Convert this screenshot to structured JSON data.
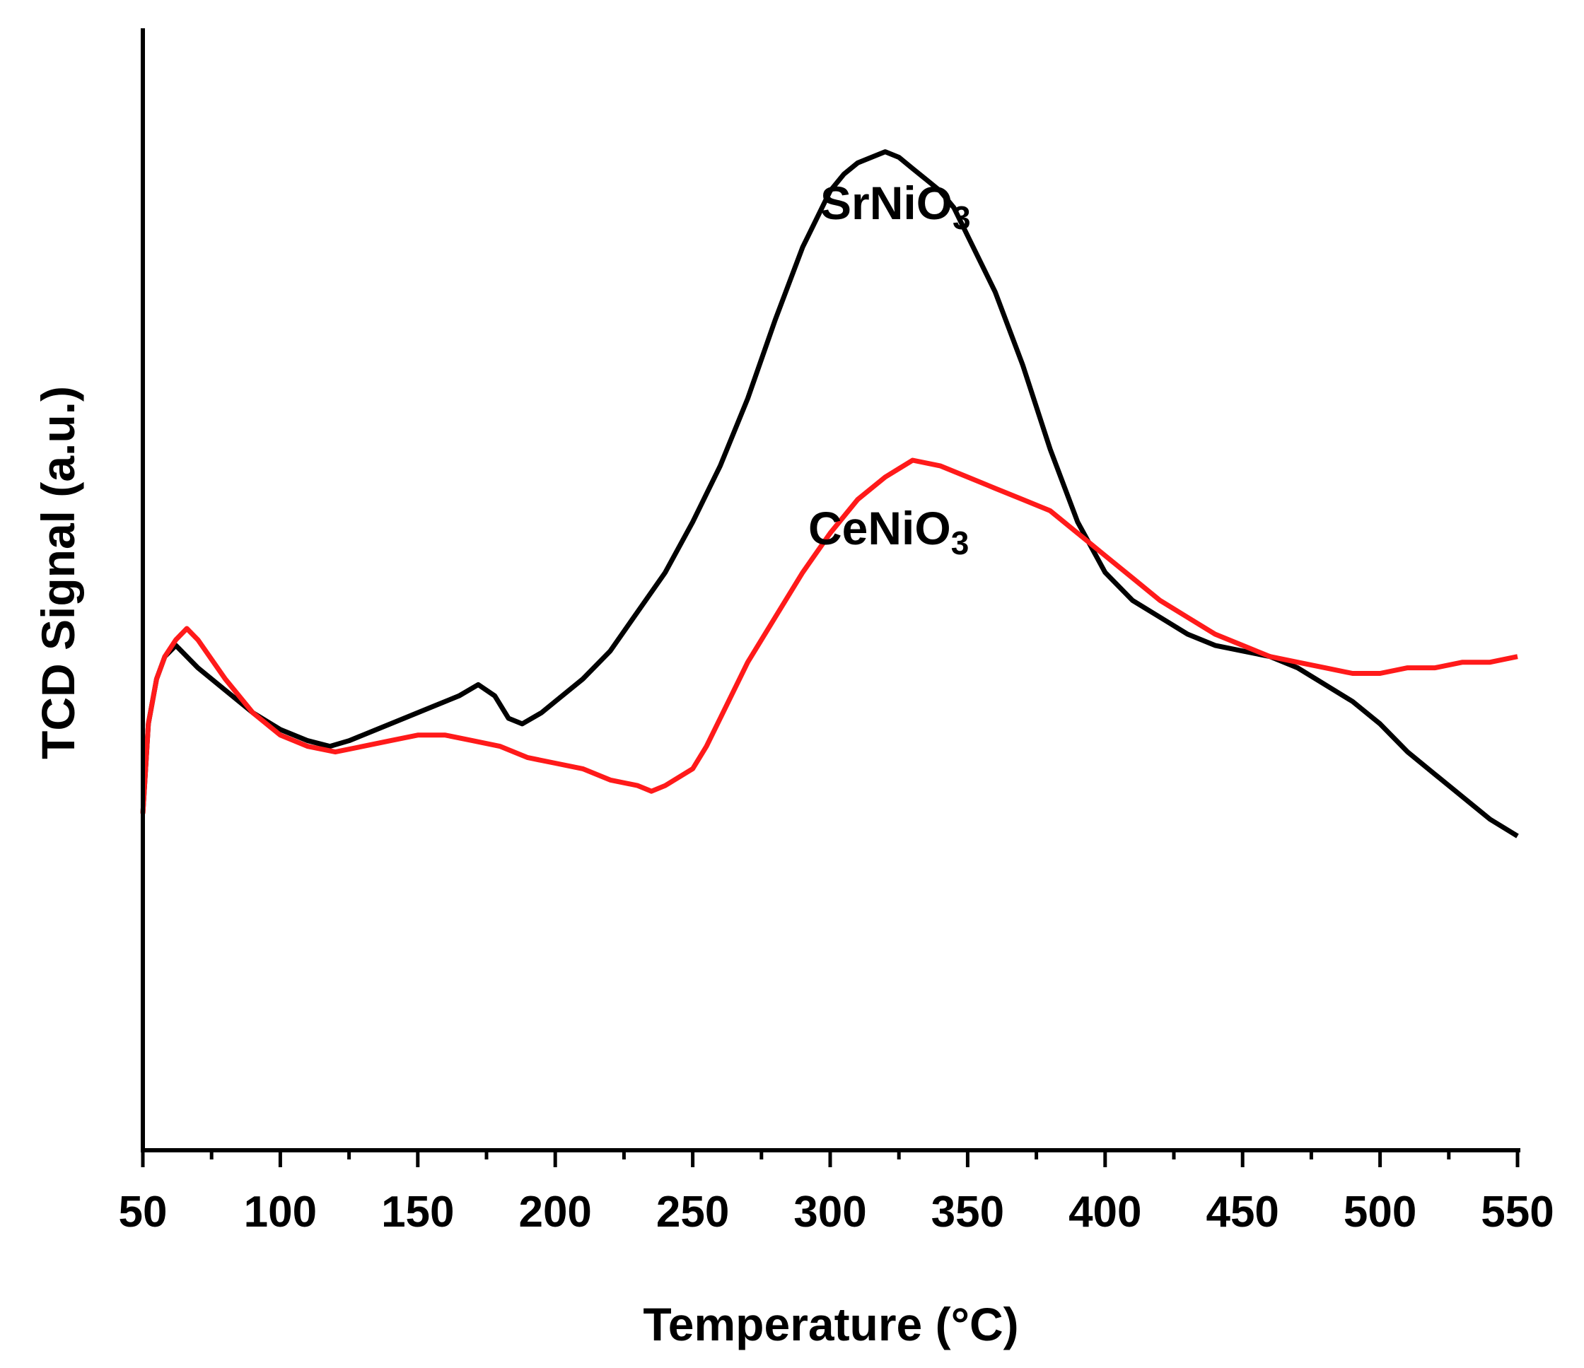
{
  "chart_data": {
    "type": "line",
    "title": "",
    "xlabel": "Temperature (°C)",
    "ylabel": "TCD Signal (a.u.)",
    "xlim": [
      50,
      550
    ],
    "ylim": [
      0,
      100
    ],
    "x_ticks": [
      "50",
      "100",
      "150",
      "200",
      "250",
      "300",
      "350",
      "400",
      "450",
      "500",
      "550"
    ],
    "y_ticks_shown": false,
    "grid": false,
    "legend": "none (inline annotations)",
    "series": [
      {
        "name": "SrNiO3",
        "color": "#000000",
        "x": [
          50,
          52,
          55,
          58,
          62,
          66,
          70,
          80,
          90,
          100,
          110,
          118,
          125,
          135,
          145,
          155,
          165,
          172,
          178,
          183,
          188,
          195,
          200,
          210,
          220,
          230,
          240,
          250,
          260,
          270,
          280,
          290,
          295,
          300,
          305,
          310,
          315,
          320,
          325,
          330,
          335,
          340,
          345,
          350,
          360,
          370,
          380,
          390,
          400,
          410,
          420,
          430,
          440,
          450,
          460,
          470,
          480,
          490,
          500,
          510,
          520,
          530,
          540,
          550
        ],
        "y": [
          30,
          38,
          42,
          44,
          45,
          44,
          43,
          41,
          39,
          37.5,
          36.5,
          36,
          36.5,
          37.5,
          38.5,
          39.5,
          40.5,
          41.5,
          40.5,
          38.5,
          38,
          39,
          40,
          42,
          44.5,
          48,
          51.5,
          56,
          61,
          67,
          74,
          80.5,
          83,
          85.5,
          87,
          88,
          88.5,
          89,
          88.5,
          87.5,
          86.5,
          85.5,
          84,
          81.5,
          76.5,
          70,
          62.5,
          56,
          51.5,
          49,
          47.5,
          46,
          45,
          44.5,
          44,
          43,
          41.5,
          40,
          38,
          35.5,
          33.5,
          31.5,
          29.5,
          28
        ]
      },
      {
        "name": "CeNiO3",
        "color": "#ff1a1a",
        "x": [
          50,
          52,
          55,
          58,
          62,
          66,
          70,
          80,
          90,
          100,
          110,
          120,
          130,
          140,
          150,
          160,
          170,
          180,
          190,
          200,
          210,
          220,
          230,
          235,
          240,
          250,
          255,
          260,
          270,
          280,
          290,
          300,
          310,
          320,
          330,
          340,
          350,
          360,
          370,
          380,
          390,
          400,
          410,
          420,
          430,
          440,
          450,
          460,
          470,
          480,
          490,
          500,
          510,
          520,
          530,
          540,
          550
        ],
        "y": [
          30,
          38,
          42,
          44,
          45.5,
          46.5,
          45.5,
          42,
          39,
          37,
          36,
          35.5,
          36,
          36.5,
          37,
          37,
          36.5,
          36,
          35,
          34.5,
          34,
          33,
          32.5,
          32,
          32.5,
          34,
          36,
          38.5,
          43.5,
          47.5,
          51.5,
          55,
          58,
          60,
          61.5,
          61,
          60,
          59,
          58,
          57,
          55,
          53,
          51,
          49,
          47.5,
          46,
          45,
          44,
          43.5,
          43,
          42.5,
          42.5,
          43,
          43,
          43.5,
          43.5,
          44
        ]
      }
    ],
    "annotations": [
      {
        "text": "SrNiO",
        "subscript": "3",
        "x": 328,
        "y": 102
      },
      {
        "text": "CeNiO",
        "subscript": "3",
        "x": 328,
        "y": 68
      }
    ]
  }
}
